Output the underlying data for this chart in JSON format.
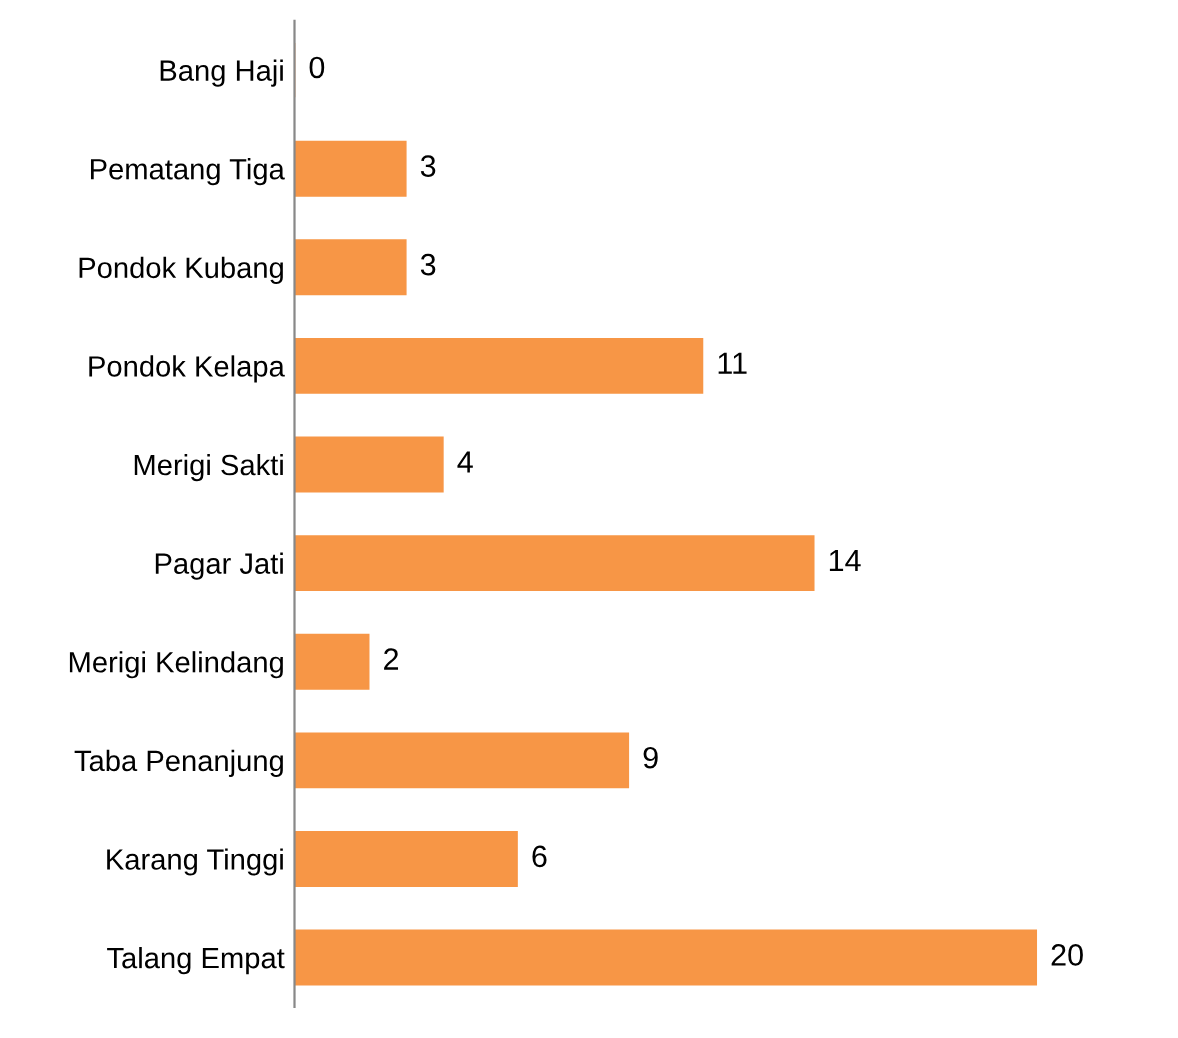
{
  "chart_data": {
    "type": "bar",
    "orientation": "horizontal",
    "categories": [
      "Bang Haji",
      "Pematang Tiga",
      "Pondok Kubang",
      "Pondok Kelapa",
      "Merigi Sakti",
      "Pagar Jati",
      "Merigi Kelindang",
      "Taba Penanjung",
      "Karang Tinggi",
      "Talang Empat"
    ],
    "values": [
      0,
      3,
      3,
      11,
      4,
      14,
      2,
      9,
      6,
      20
    ],
    "color": "#f79646",
    "data_labels": true,
    "grid": false,
    "legend": false
  }
}
